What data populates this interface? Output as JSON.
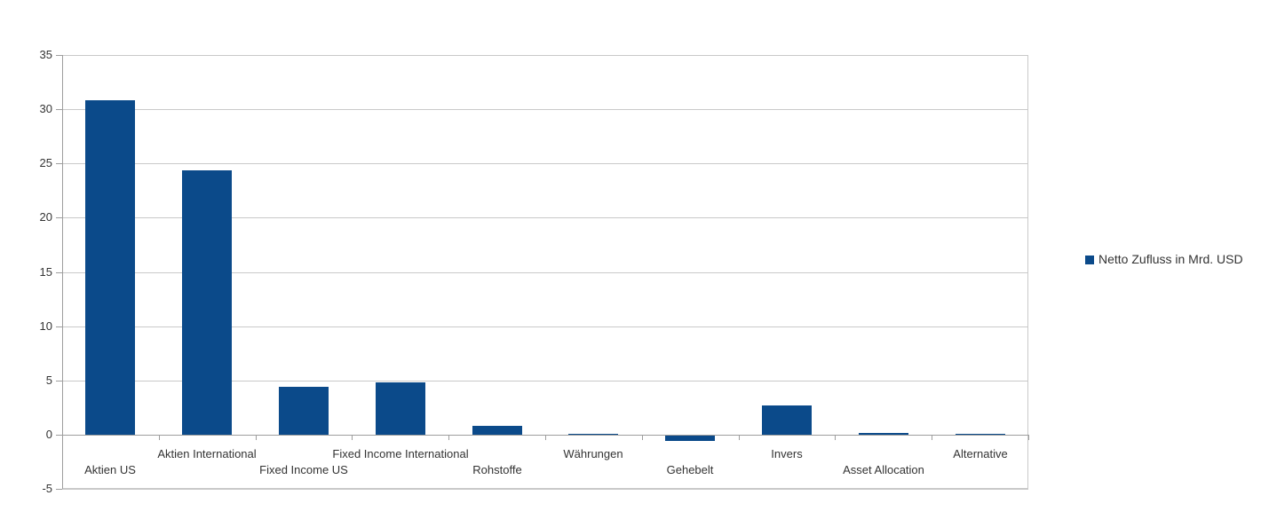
{
  "chart_data": {
    "type": "bar",
    "title": "",
    "categories": [
      "Aktien US",
      "Aktien International",
      "Fixed Income US",
      "Fixed Income International",
      "Rohstoffe",
      "Währungen",
      "Gehebelt",
      "Invers",
      "Asset Allocation",
      "Alternative"
    ],
    "series": [
      {
        "name": "Netto Zufluss in Mrd. USD",
        "values": [
          30.8,
          24.4,
          4.4,
          4.8,
          0.8,
          0.1,
          -0.5,
          2.7,
          0.15,
          0.1
        ]
      }
    ],
    "ylim": [
      -5,
      35
    ],
    "yticks": [
      35,
      30,
      25,
      20,
      15,
      10,
      5,
      0,
      -5
    ],
    "grid": "horizontal-only",
    "legend_position": "right",
    "xlabel": "",
    "ylabel": "",
    "colors": {
      "bar": "#0b4a8a",
      "gridline": "#c9c9c9",
      "axis": "#9e9e9e",
      "text": "#333333",
      "background": "#ffffff"
    }
  }
}
